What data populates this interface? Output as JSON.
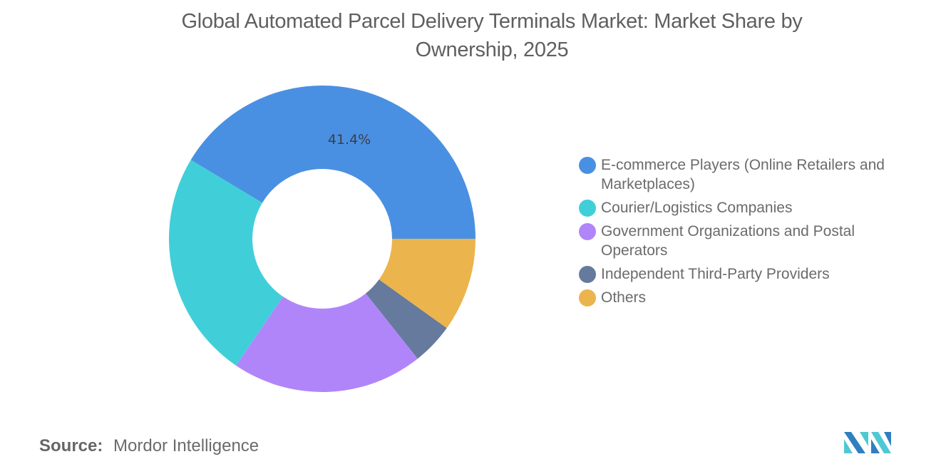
{
  "title": "Global Automated Parcel Delivery Terminals Market: Market Share by Ownership, 2025",
  "title_lines": [
    "Global Automated Parcel Delivery Terminals Market: Market Share by",
    "Ownership, 2025"
  ],
  "source": {
    "label": "Source:",
    "value": "Mordor Intelligence"
  },
  "logo": {
    "icon": "mordor-intelligence-logo-icon",
    "colors": [
      "#2f7fc1",
      "#4ec9d4"
    ]
  },
  "data_label": "41.4%",
  "legend": [
    {
      "label": "E-commerce Players (Online Retailers and Marketplaces)",
      "color": "#4a90e2"
    },
    {
      "label": "Courier/Logistics Companies",
      "color": "#40cfd9"
    },
    {
      "label": "Government Organizations and Postal Operators",
      "color": "#b185fa"
    },
    {
      "label": "Independent Third-Party Providers",
      "color": "#657a9c"
    },
    {
      "label": "Others",
      "color": "#ebb44c"
    }
  ],
  "chart_data": {
    "type": "pie",
    "subtype": "donut",
    "title": "Global Automated Parcel Delivery Terminals Market: Market Share by Ownership, 2025",
    "categories": [
      "E-commerce Players (Online Retailers and Marketplaces)",
      "Courier/Logistics Companies",
      "Government Organizations and Postal Operators",
      "Independent Third-Party Providers",
      "Others"
    ],
    "values": [
      41.4,
      24.1,
      20.2,
      4.4,
      9.9
    ],
    "unit": "%",
    "colors": [
      "#4a90e2",
      "#40cfd9",
      "#b185fa",
      "#657a9c",
      "#ebb44c"
    ],
    "data_labels_shown": {
      "E-commerce Players (Online Retailers and Marketplaces)": "41.4%"
    },
    "start_angle": "3 o'clock, counter-clockwise",
    "legend_position": "right",
    "source": "Mordor Intelligence"
  }
}
